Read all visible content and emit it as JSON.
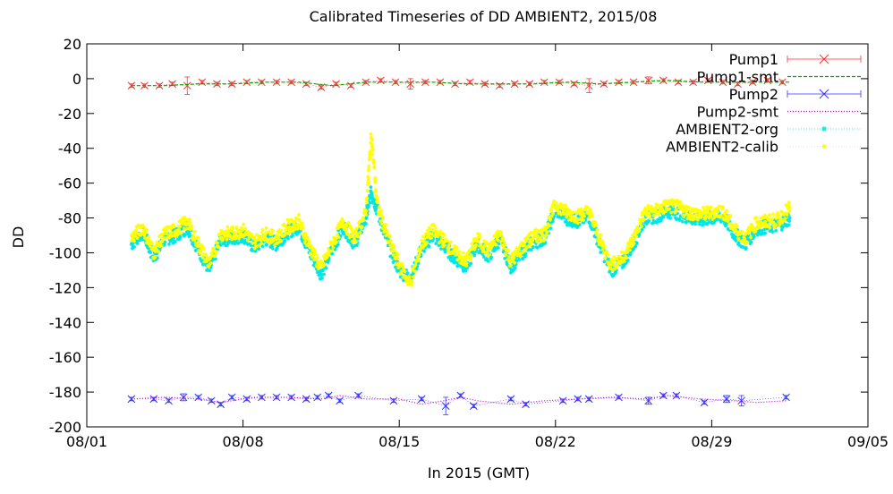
{
  "chart_data": {
    "type": "line",
    "title": "Calibrated Timeseries of DD AMBIENT2, 2015/08",
    "xlabel": "In 2015 (GMT)",
    "ylabel": "DD",
    "xlim": [
      "2015-08-01",
      "2015-09-05"
    ],
    "ylim": [
      -200,
      20
    ],
    "x_ticks": [
      {
        "date": "2015-08-01",
        "label": "08/01"
      },
      {
        "date": "2015-08-08",
        "label": "08/08"
      },
      {
        "date": "2015-08-15",
        "label": "08/15"
      },
      {
        "date": "2015-08-22",
        "label": "08/22"
      },
      {
        "date": "2015-08-29",
        "label": "08/29"
      },
      {
        "date": "2015-09-05",
        "label": "09/05"
      }
    ],
    "y_ticks": [
      20,
      0,
      -20,
      -40,
      -60,
      -80,
      -100,
      -120,
      -140,
      -160,
      -180,
      -200
    ],
    "grid": false,
    "legend": "top-right",
    "series": [
      {
        "name": "Pump1",
        "color": "#ff3333",
        "style": "points-errorbars",
        "marker": "x",
        "x": [
          "2015-08-03 00:00",
          "2015-08-03 14:00",
          "2015-08-04 06:00",
          "2015-08-04 20:00",
          "2015-08-05 12:00",
          "2015-08-06 04:00",
          "2015-08-06 20:00",
          "2015-08-07 12:00",
          "2015-08-08 04:00",
          "2015-08-08 20:00",
          "2015-08-09 12:00",
          "2015-08-10 04:00",
          "2015-08-10 20:00",
          "2015-08-11 12:00",
          "2015-08-12 04:00",
          "2015-08-12 20:00",
          "2015-08-13 12:00",
          "2015-08-14 04:00",
          "2015-08-14 20:00",
          "2015-08-15 12:00",
          "2015-08-16 04:00",
          "2015-08-16 20:00",
          "2015-08-17 12:00",
          "2015-08-18 04:00",
          "2015-08-18 20:00",
          "2015-08-19 12:00",
          "2015-08-20 04:00",
          "2015-08-20 20:00",
          "2015-08-21 12:00",
          "2015-08-22 04:00",
          "2015-08-22 20:00",
          "2015-08-23 12:00",
          "2015-08-24 04:00",
          "2015-08-24 20:00",
          "2015-08-25 12:00",
          "2015-08-26 04:00",
          "2015-08-26 20:00",
          "2015-08-27 12:00",
          "2015-08-28 04:00",
          "2015-08-28 20:00",
          "2015-08-29 12:00",
          "2015-08-30 04:00",
          "2015-08-30 20:00",
          "2015-08-31 12:00",
          "2015-09-01 04:00"
        ],
        "values": [
          -4,
          -4,
          -4,
          -3,
          -4,
          -2,
          -3,
          -3,
          -2,
          -2,
          -2,
          -2,
          -3,
          -5,
          -3,
          -4,
          -2,
          -1,
          -2,
          -3,
          -2,
          -2,
          -3,
          -2,
          -3,
          -4,
          -3,
          -3,
          -2,
          -2,
          -3,
          -4,
          -3,
          -2,
          -2,
          -1,
          -1,
          -2,
          -2,
          -1,
          -2,
          -3,
          -2,
          -1,
          -2
        ],
        "errors": [
          1,
          1,
          1,
          1,
          5,
          1,
          1,
          1,
          1,
          1,
          1,
          1,
          1,
          1,
          1,
          1,
          1,
          1,
          1,
          3,
          1,
          1,
          1,
          1,
          1,
          1,
          1,
          1,
          1,
          1,
          1,
          4,
          1,
          1,
          1,
          2,
          1,
          1,
          1,
          1,
          1,
          1,
          1,
          1,
          1
        ]
      },
      {
        "name": "Pump1-smt",
        "color": "#00aa00",
        "style": "dashed-line",
        "x": [
          "2015-08-03 00:00",
          "2015-08-04 12:00",
          "2015-08-06 00:00",
          "2015-08-07 12:00",
          "2015-08-09 00:00",
          "2015-08-10 12:00",
          "2015-08-12 00:00",
          "2015-08-13 12:00",
          "2015-08-15 00:00",
          "2015-08-16 12:00",
          "2015-08-18 00:00",
          "2015-08-19 12:00",
          "2015-08-21 00:00",
          "2015-08-22 12:00",
          "2015-08-24 00:00",
          "2015-08-25 12:00",
          "2015-08-27 00:00",
          "2015-08-28 12:00",
          "2015-08-30 00:00",
          "2015-08-31 12:00",
          "2015-09-01 12:00"
        ],
        "values": [
          -4,
          -4,
          -3,
          -3,
          -2,
          -2,
          -4,
          -2,
          -2,
          -2,
          -3,
          -3,
          -3,
          -2,
          -3,
          -2,
          -1,
          -2,
          -2,
          -2,
          -2
        ]
      },
      {
        "name": "Pump2",
        "color": "#3333ff",
        "style": "points-errorbars",
        "marker": "x",
        "x": [
          "2015-08-03 00:00",
          "2015-08-04 00:00",
          "2015-08-04 16:00",
          "2015-08-05 08:00",
          "2015-08-06 00:00",
          "2015-08-06 14:00",
          "2015-08-07 00:00",
          "2015-08-07 12:00",
          "2015-08-08 04:00",
          "2015-08-08 20:00",
          "2015-08-09 12:00",
          "2015-08-10 04:00",
          "2015-08-10 20:00",
          "2015-08-11 08:00",
          "2015-08-11 20:00",
          "2015-08-12 08:00",
          "2015-08-13 04:00",
          "2015-08-14 18:00",
          "2015-08-16 00:00",
          "2015-08-17 02:00",
          "2015-08-17 18:00",
          "2015-08-18 08:00",
          "2015-08-20 00:00",
          "2015-08-20 16:00",
          "2015-08-22 08:00",
          "2015-08-23 00:00",
          "2015-08-23 12:00",
          "2015-08-24 20:00",
          "2015-08-26 04:00",
          "2015-08-26 20:00",
          "2015-08-27 10:00",
          "2015-08-28 16:00",
          "2015-08-29 16:00",
          "2015-08-30 08:00",
          "2015-09-01 08:00"
        ],
        "values": [
          -184,
          -184,
          -185,
          -183,
          -183,
          -185,
          -187,
          -183,
          -184,
          -183,
          -183,
          -183,
          -184,
          -183,
          -182,
          -185,
          -182,
          -185,
          -184,
          -188,
          -182,
          -188,
          -184,
          -187,
          -185,
          -184,
          -184,
          -183,
          -185,
          -182,
          -182,
          -186,
          -184,
          -185,
          -183
        ],
        "errors": [
          1,
          1,
          1,
          2,
          1,
          1,
          1,
          1,
          1,
          1,
          1,
          1,
          1,
          1,
          1,
          1,
          1,
          1,
          1,
          5,
          1,
          1,
          1,
          1,
          1,
          1,
          1,
          1,
          2,
          1,
          1,
          1,
          2,
          3,
          1
        ]
      },
      {
        "name": "Pump2-smt",
        "color": "#cc00cc",
        "style": "dotted-line",
        "x": [
          "2015-08-03 00:00",
          "2015-08-04 12:00",
          "2015-08-06 00:00",
          "2015-08-07 00:00",
          "2015-08-08 12:00",
          "2015-08-10 00:00",
          "2015-08-11 12:00",
          "2015-08-12 08:00",
          "2015-08-13 12:00",
          "2015-08-15 00:00",
          "2015-08-16 00:00",
          "2015-08-17 00:00",
          "2015-08-17 18:00",
          "2015-08-18 12:00",
          "2015-08-20 00:00",
          "2015-08-21 12:00",
          "2015-08-23 00:00",
          "2015-08-24 12:00",
          "2015-08-26 00:00",
          "2015-08-27 00:00",
          "2015-08-28 12:00",
          "2015-08-30 00:00",
          "2015-08-31 00:00",
          "2015-09-01 08:00"
        ],
        "values": [
          -184,
          -183,
          -184,
          -186,
          -183,
          -183,
          -184,
          -182,
          -184,
          -184,
          -187,
          -185,
          -183,
          -185,
          -187,
          -185,
          -184,
          -183,
          -184,
          -182,
          -184,
          -185,
          -186,
          -185
        ]
      },
      {
        "name": "AMBIENT2-org",
        "color": "#00e5e5",
        "style": "dense-points",
        "marker": "*",
        "x": [
          "2015-08-03 00:00",
          "2015-08-03 12:00",
          "2015-08-04 00:00",
          "2015-08-04 12:00",
          "2015-08-05 00:00",
          "2015-08-05 12:00",
          "2015-08-06 00:00",
          "2015-08-06 12:00",
          "2015-08-07 00:00",
          "2015-08-07 12:00",
          "2015-08-08 00:00",
          "2015-08-08 12:00",
          "2015-08-09 00:00",
          "2015-08-09 12:00",
          "2015-08-10 00:00",
          "2015-08-10 12:00",
          "2015-08-11 00:00",
          "2015-08-11 12:00",
          "2015-08-12 00:00",
          "2015-08-12 12:00",
          "2015-08-13 00:00",
          "2015-08-13 12:00",
          "2015-08-13 18:00",
          "2015-08-14 00:00",
          "2015-08-14 12:00",
          "2015-08-15 00:00",
          "2015-08-15 12:00",
          "2015-08-16 00:00",
          "2015-08-16 12:00",
          "2015-08-17 00:00",
          "2015-08-17 12:00",
          "2015-08-18 00:00",
          "2015-08-18 12:00",
          "2015-08-19 00:00",
          "2015-08-19 12:00",
          "2015-08-20 00:00",
          "2015-08-20 12:00",
          "2015-08-21 00:00",
          "2015-08-21 12:00",
          "2015-08-22 00:00",
          "2015-08-22 12:00",
          "2015-08-23 00:00",
          "2015-08-23 12:00",
          "2015-08-24 00:00",
          "2015-08-24 12:00",
          "2015-08-25 00:00",
          "2015-08-25 12:00",
          "2015-08-26 00:00",
          "2015-08-26 12:00",
          "2015-08-27 00:00",
          "2015-08-27 12:00",
          "2015-08-28 00:00",
          "2015-08-28 12:00",
          "2015-08-29 00:00",
          "2015-08-29 12:00",
          "2015-08-30 00:00",
          "2015-08-30 12:00",
          "2015-08-31 00:00",
          "2015-08-31 12:00",
          "2015-09-01 00:00",
          "2015-09-01 12:00"
        ],
        "values": [
          -95,
          -88,
          -103,
          -92,
          -90,
          -85,
          -98,
          -110,
          -92,
          -92,
          -90,
          -97,
          -92,
          -95,
          -88,
          -85,
          -100,
          -112,
          -98,
          -85,
          -95,
          -80,
          -65,
          -75,
          -95,
          -110,
          -115,
          -98,
          -90,
          -96,
          -103,
          -108,
          -95,
          -102,
          -92,
          -108,
          -100,
          -94,
          -92,
          -75,
          -80,
          -82,
          -79,
          -96,
          -110,
          -106,
          -95,
          -80,
          -79,
          -76,
          -77,
          -80,
          -81,
          -80,
          -79,
          -89,
          -95,
          -86,
          -85,
          -84,
          -80
        ]
      },
      {
        "name": "AMBIENT2-calib",
        "color": "#ffff00",
        "style": "dense-points",
        "marker": "*",
        "x": [
          "2015-08-03 00:00",
          "2015-08-03 12:00",
          "2015-08-04 00:00",
          "2015-08-04 12:00",
          "2015-08-05 00:00",
          "2015-08-05 12:00",
          "2015-08-06 00:00",
          "2015-08-06 12:00",
          "2015-08-07 00:00",
          "2015-08-07 12:00",
          "2015-08-08 00:00",
          "2015-08-08 12:00",
          "2015-08-09 00:00",
          "2015-08-09 12:00",
          "2015-08-10 00:00",
          "2015-08-10 12:00",
          "2015-08-11 00:00",
          "2015-08-11 12:00",
          "2015-08-12 00:00",
          "2015-08-12 12:00",
          "2015-08-13 00:00",
          "2015-08-13 12:00",
          "2015-08-13 18:00",
          "2015-08-14 00:00",
          "2015-08-14 12:00",
          "2015-08-15 00:00",
          "2015-08-15 12:00",
          "2015-08-16 00:00",
          "2015-08-16 12:00",
          "2015-08-17 00:00",
          "2015-08-17 12:00",
          "2015-08-18 00:00",
          "2015-08-18 12:00",
          "2015-08-19 00:00",
          "2015-08-19 12:00",
          "2015-08-20 00:00",
          "2015-08-20 12:00",
          "2015-08-21 00:00",
          "2015-08-21 12:00",
          "2015-08-22 00:00",
          "2015-08-22 12:00",
          "2015-08-23 00:00",
          "2015-08-23 12:00",
          "2015-08-24 00:00",
          "2015-08-24 12:00",
          "2015-08-25 00:00",
          "2015-08-25 12:00",
          "2015-08-26 00:00",
          "2015-08-26 12:00",
          "2015-08-27 00:00",
          "2015-08-27 12:00",
          "2015-08-28 00:00",
          "2015-08-28 12:00",
          "2015-08-29 00:00",
          "2015-08-29 12:00",
          "2015-08-30 00:00",
          "2015-08-30 12:00",
          "2015-08-31 00:00",
          "2015-08-31 12:00",
          "2015-09-01 00:00",
          "2015-09-01 12:00"
        ],
        "values": [
          -92,
          -85,
          -100,
          -89,
          -87,
          -82,
          -95,
          -107,
          -89,
          -89,
          -87,
          -94,
          -89,
          -92,
          -85,
          -82,
          -97,
          -109,
          -95,
          -82,
          -92,
          -77,
          -32,
          -72,
          -92,
          -107,
          -118,
          -95,
          -87,
          -93,
          -100,
          -105,
          -92,
          -99,
          -89,
          -105,
          -97,
          -91,
          -89,
          -72,
          -77,
          -79,
          -76,
          -93,
          -107,
          -103,
          -92,
          -77,
          -76,
          -73,
          -74,
          -77,
          -78,
          -77,
          -76,
          -86,
          -92,
          -83,
          -82,
          -81,
          -74
        ]
      }
    ]
  }
}
